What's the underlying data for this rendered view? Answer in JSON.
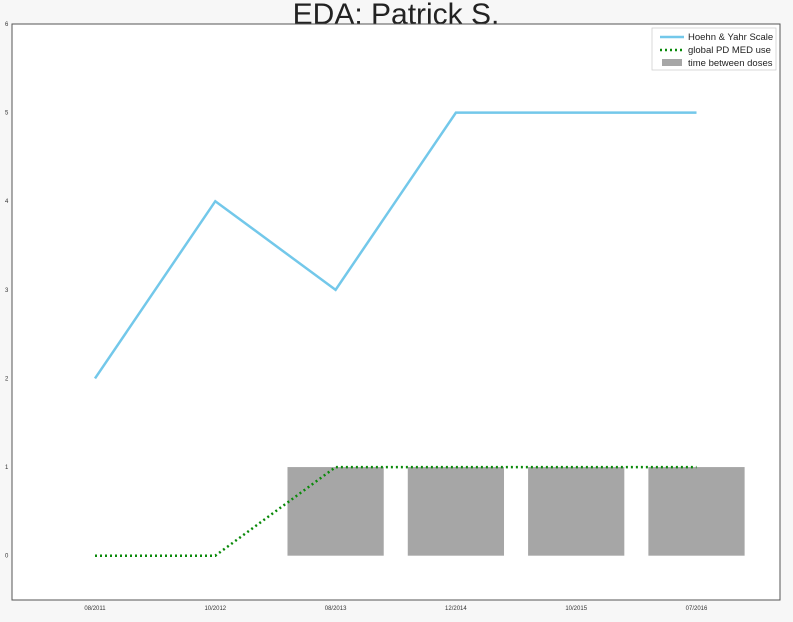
{
  "chart_data": {
    "type": "line",
    "title": "EDA: Patrick S.",
    "xlabel": "",
    "ylabel": "",
    "categories": [
      "08/2011",
      "10/2012",
      "08/2013",
      "12/2014",
      "10/2015",
      "07/2016"
    ],
    "ylim": [
      -0.5,
      6
    ],
    "yticks": [
      0,
      1,
      2,
      3,
      4,
      5,
      6
    ],
    "series": [
      {
        "name": "Hoehn & Yahr Scale",
        "type": "line",
        "style": "solid",
        "color": "#73c8ea",
        "values": [
          2,
          4,
          3,
          5,
          5,
          5
        ]
      },
      {
        "name": "global PD MED use",
        "type": "line",
        "style": "dotted",
        "color": "#0a8a0a",
        "values": [
          0,
          0,
          1,
          1,
          1,
          1
        ]
      },
      {
        "name": "time between doses",
        "type": "bar",
        "color": "#a6a6a6",
        "bars": [
          {
            "x_start": 1.6,
            "x_end": 2.4,
            "value": 1
          },
          {
            "x_start": 2.6,
            "x_end": 3.4,
            "value": 1
          },
          {
            "x_start": 3.6,
            "x_end": 4.4,
            "value": 1
          },
          {
            "x_start": 4.6,
            "x_end": 5.4,
            "value": 1
          }
        ]
      }
    ],
    "grid": false,
    "legend": "top-right"
  }
}
